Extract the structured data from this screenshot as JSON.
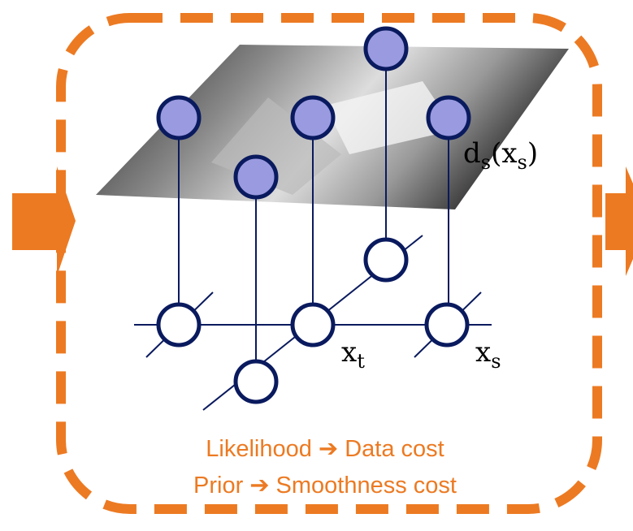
{
  "labels": {
    "data_term": [
      {
        "text": "d"
      },
      {
        "sub": "s"
      },
      {
        "text": "(x"
      },
      {
        "sub": "s"
      },
      {
        "text": ")"
      }
    ],
    "node_t": [
      {
        "text": "x"
      },
      {
        "sub": "t"
      }
    ],
    "node_s": [
      {
        "text": "x"
      },
      {
        "sub": "s"
      }
    ]
  },
  "caption": [
    [
      "Likelihood",
      "➔",
      "Data cost"
    ],
    [
      "Prior",
      "➔",
      "Smoothness cost"
    ]
  ]
}
